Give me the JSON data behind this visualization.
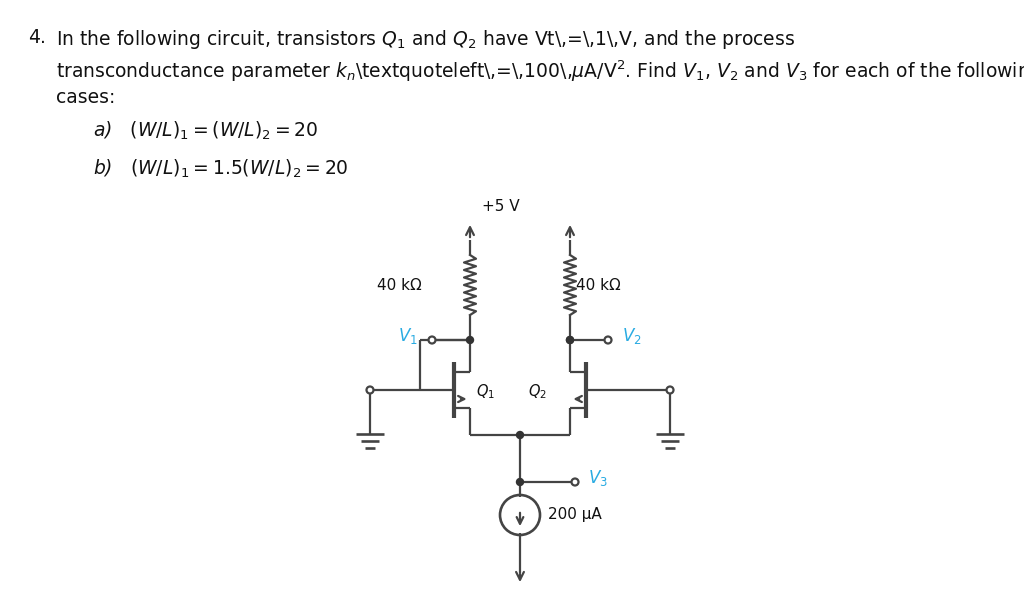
{
  "bg_color": "#ffffff",
  "text_color": "#000000",
  "cyan_color": "#29ABE2",
  "label_40k_left": "40 kΩ",
  "label_40k_right": "40 kΩ",
  "label_5V": "+5 V",
  "label_V1": "$V_1$",
  "label_V2": "$V_2$",
  "label_V3": "$V_3$",
  "label_Q1": "$Q_1$",
  "label_Q2": "$Q_2$",
  "label_current": "200 μA",
  "line_color": "#444444",
  "lw": 1.6
}
